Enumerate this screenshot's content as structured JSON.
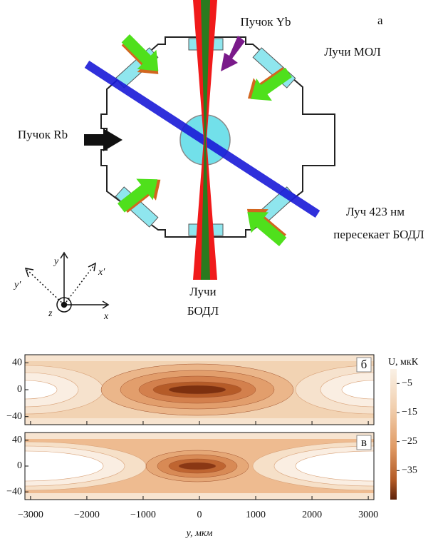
{
  "diagram": {
    "panel_label": "а",
    "labels": {
      "yb_beam": "Пучок Yb",
      "mot_beams": "Лучи МОЛ",
      "rb_beam": "Пучок Rb",
      "beam_423_line1": "Луч 423 нм",
      "beam_423_line2": "пересекает БОДЛ",
      "odt_line1": "Лучи",
      "odt_line2": "БОДЛ"
    },
    "axes": {
      "y": "y",
      "x_prime": "x′",
      "y_prime": "y′",
      "z": "z",
      "x": "x"
    }
  },
  "plots": {
    "panels": [
      {
        "label": "б"
      },
      {
        "label": "в"
      }
    ],
    "xlim": [
      -3100,
      3100
    ],
    "xticks": [
      {
        "value": -3000,
        "label": "−3000"
      },
      {
        "value": -2000,
        "label": "−2000"
      },
      {
        "value": -1000,
        "label": "−1000"
      },
      0,
      1000,
      2000,
      3000
    ],
    "xlabel": "y, мкм",
    "ylim": [
      -52,
      52
    ],
    "yticks": [
      40,
      0,
      {
        "value": -40,
        "label": "−40"
      }
    ],
    "colorbar": {
      "title": "U, мкК",
      "lim": [
        -45,
        0
      ],
      "ticks": [
        {
          "value": -5,
          "label": "−5"
        },
        {
          "value": -15,
          "label": "−15"
        },
        {
          "value": -25,
          "label": "−25"
        },
        {
          "value": -35,
          "label": "−35"
        }
      ]
    }
  }
}
